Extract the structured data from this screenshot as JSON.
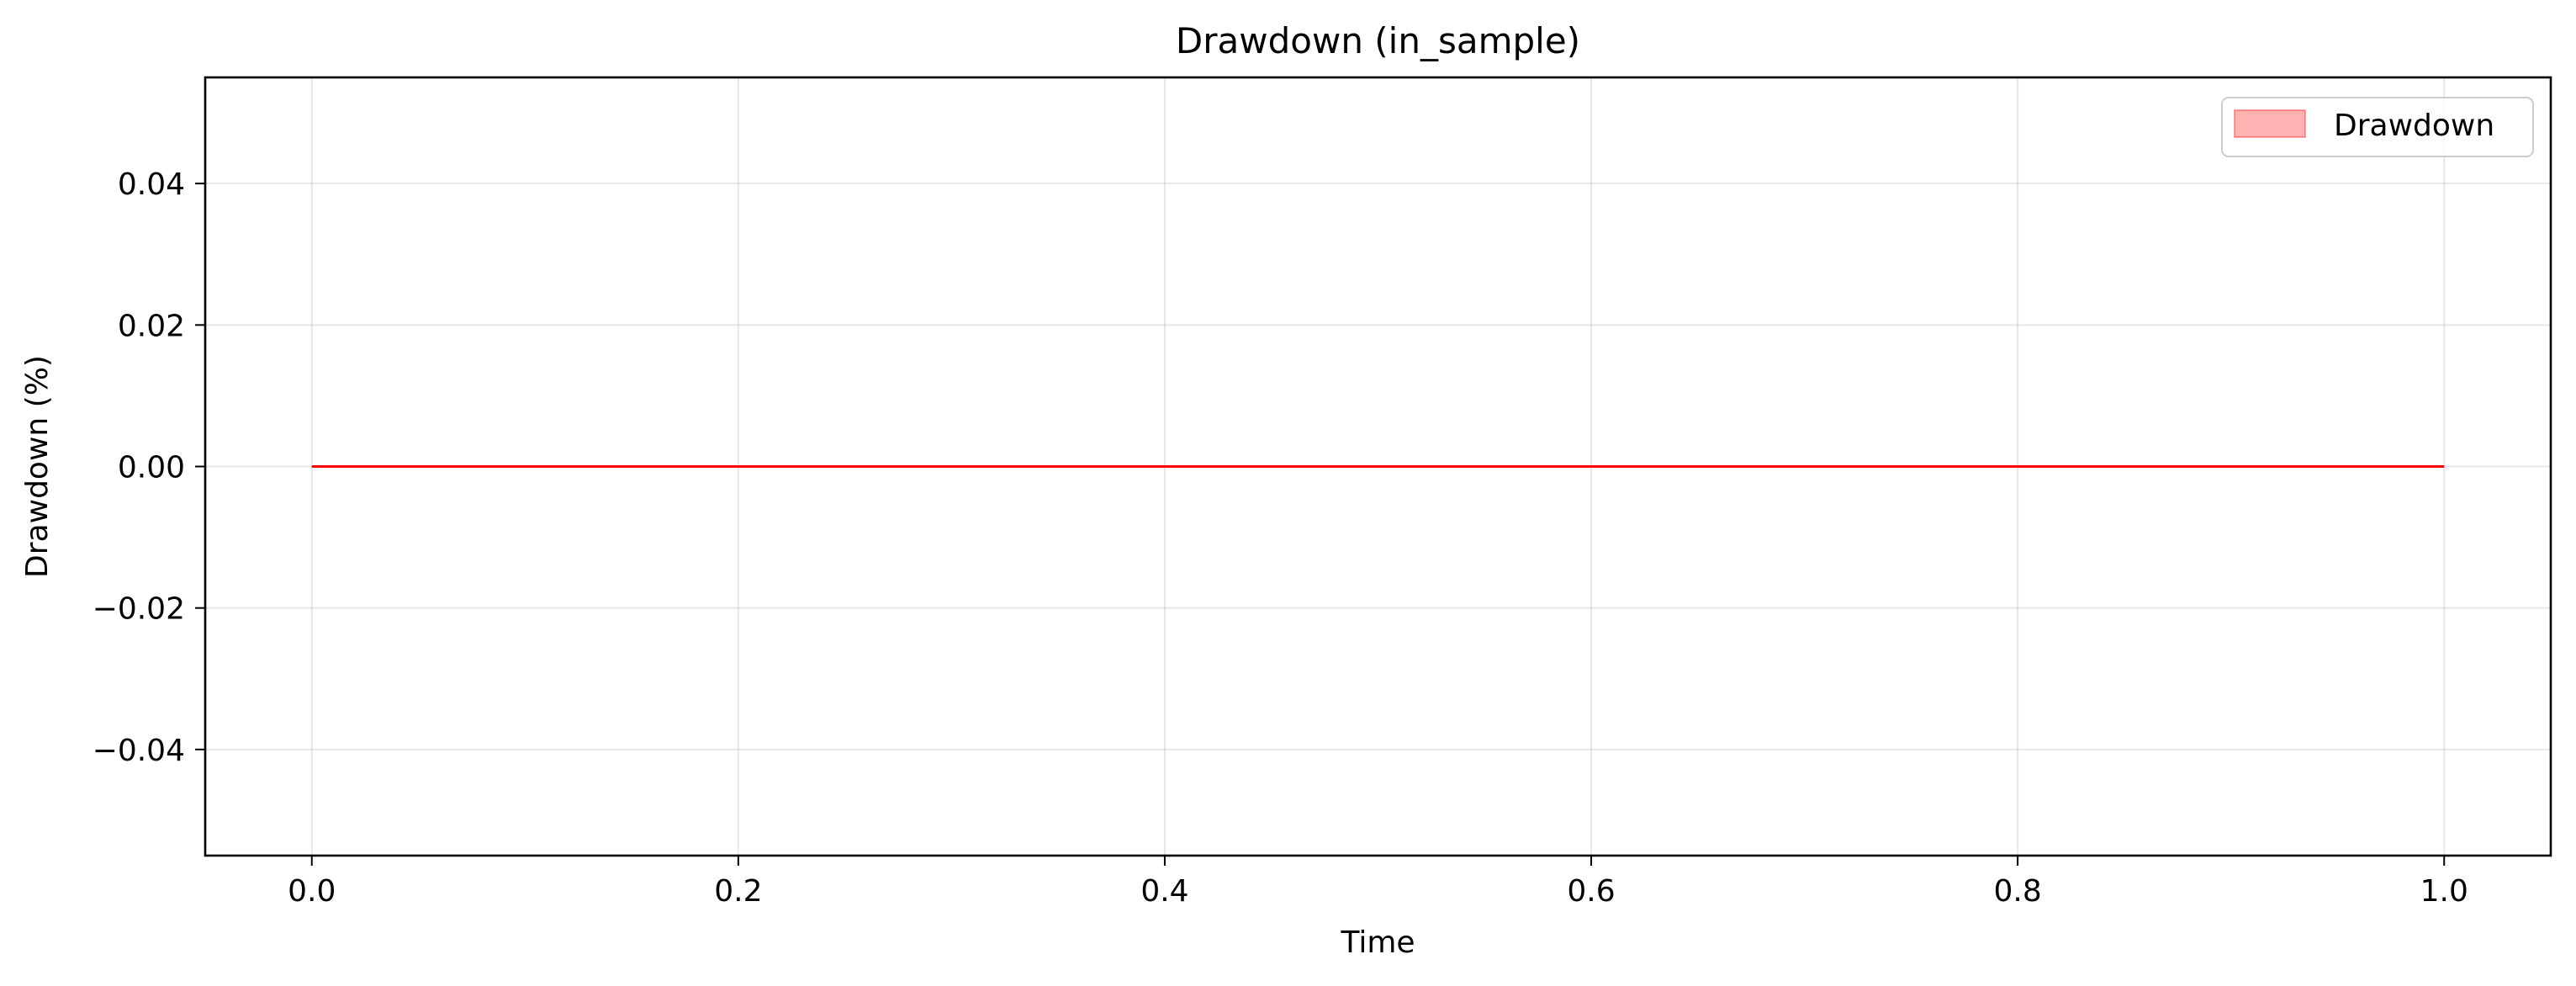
{
  "chart_data": {
    "type": "area",
    "title": "Drawdown (in_sample)",
    "xlabel": "Time",
    "ylabel": "Drawdown (%)",
    "xlim": [
      -0.05,
      1.05
    ],
    "ylim": [
      -0.055,
      0.055
    ],
    "x_ticks": [
      0.0,
      0.2,
      0.4,
      0.6,
      0.8,
      1.0
    ],
    "x_tick_labels": [
      "0.0",
      "0.2",
      "0.4",
      "0.6",
      "0.8",
      "1.0"
    ],
    "y_ticks": [
      0.04,
      0.02,
      0.0,
      -0.02,
      -0.04
    ],
    "y_tick_labels": [
      "0.04",
      "0.02",
      "0.00",
      "−0.02",
      "−0.04"
    ],
    "grid": true,
    "legend": {
      "position": "upper right",
      "entries": [
        "Drawdown"
      ]
    },
    "series": [
      {
        "name": "Drawdown",
        "x": [
          0.0,
          1.0
        ],
        "y": [
          0.0,
          0.0
        ],
        "line_color": "#ff0000",
        "fill_color": "#ff0000",
        "fill_alpha": 0.3
      }
    ]
  }
}
